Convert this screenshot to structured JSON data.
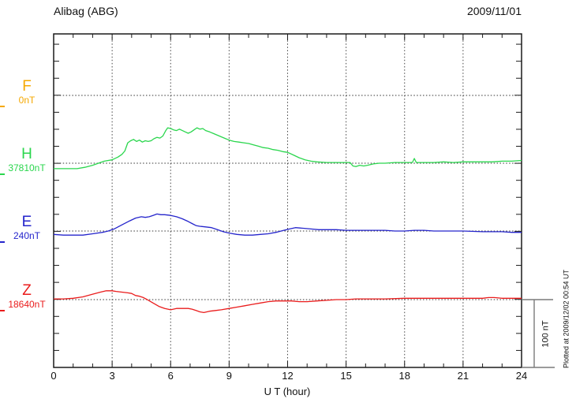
{
  "header": {
    "title": "Alibag (ABG)",
    "date": "2009/11/01"
  },
  "axis": {
    "x_label": "U T (hour)"
  },
  "scale_bar": {
    "label": "100 nT",
    "nT": 100
  },
  "footer_note": "Plotted at 2009/12/02 00:54 UT",
  "components": [
    {
      "label": "F",
      "value": "0nT",
      "color": "#f5a800"
    },
    {
      "label": "H",
      "value": "37810nT",
      "color": "#2ad64d"
    },
    {
      "label": "E",
      "value": "240nT",
      "color": "#2525cc"
    },
    {
      "label": "Z",
      "value": "18640nT",
      "color": "#ea1c1c"
    }
  ],
  "chart_data": {
    "type": "line",
    "title": "Alibag (ABG) magnetogram, 2009/11/01",
    "xlabel": "U T (hour)",
    "x_range": [
      0,
      24
    ],
    "x_ticks": [
      "0",
      "3",
      "6",
      "9",
      "12",
      "15",
      "18",
      "21",
      "24"
    ],
    "grid": "dotted vertical every 3 h, dotted horizontal baseline per component",
    "legend_position": "left margin (component letters with baseline values)",
    "y_scale_note": "offsets in nT relative to each component baseline; scale bar = 100 nT",
    "series": [
      {
        "name": "F",
        "baseline_value": "0nT",
        "color": "#f5a800",
        "points": []
      },
      {
        "name": "H",
        "baseline_value": "37810nT",
        "color": "#2ad64d",
        "points": [
          [
            0,
            -8
          ],
          [
            0.4,
            -8
          ],
          [
            0.8,
            -8
          ],
          [
            1.2,
            -8
          ],
          [
            1.6,
            -6
          ],
          [
            2.0,
            -3
          ],
          [
            2.3,
            0
          ],
          [
            2.6,
            3
          ],
          [
            3.0,
            5
          ],
          [
            3.3,
            9
          ],
          [
            3.5,
            13
          ],
          [
            3.65,
            18
          ],
          [
            3.8,
            30
          ],
          [
            3.95,
            33
          ],
          [
            4.1,
            35
          ],
          [
            4.25,
            32
          ],
          [
            4.4,
            34
          ],
          [
            4.55,
            31
          ],
          [
            4.7,
            33
          ],
          [
            4.85,
            32
          ],
          [
            5.0,
            33
          ],
          [
            5.15,
            36
          ],
          [
            5.3,
            38
          ],
          [
            5.45,
            37
          ],
          [
            5.6,
            40
          ],
          [
            5.75,
            48
          ],
          [
            5.85,
            52
          ],
          [
            6.0,
            51
          ],
          [
            6.15,
            49
          ],
          [
            6.3,
            48
          ],
          [
            6.45,
            50
          ],
          [
            6.6,
            48
          ],
          [
            6.75,
            46
          ],
          [
            6.9,
            44
          ],
          [
            7.05,
            46
          ],
          [
            7.2,
            49
          ],
          [
            7.35,
            52
          ],
          [
            7.5,
            50
          ],
          [
            7.65,
            51
          ],
          [
            7.8,
            48
          ],
          [
            8.0,
            46
          ],
          [
            8.25,
            43
          ],
          [
            8.5,
            40
          ],
          [
            8.75,
            37
          ],
          [
            9.0,
            34
          ],
          [
            9.25,
            32
          ],
          [
            9.5,
            31
          ],
          [
            9.75,
            30
          ],
          [
            10.0,
            29
          ],
          [
            10.25,
            27
          ],
          [
            10.5,
            25
          ],
          [
            10.75,
            23
          ],
          [
            11.0,
            22
          ],
          [
            11.25,
            20
          ],
          [
            11.5,
            19
          ],
          [
            11.75,
            17
          ],
          [
            12.0,
            16
          ],
          [
            12.3,
            12
          ],
          [
            12.6,
            8
          ],
          [
            12.9,
            5
          ],
          [
            13.2,
            3
          ],
          [
            13.5,
            2
          ],
          [
            14.0,
            1
          ],
          [
            14.5,
            1
          ],
          [
            15.0,
            1
          ],
          [
            15.2,
            1
          ],
          [
            15.35,
            -4
          ],
          [
            15.5,
            -5
          ],
          [
            15.7,
            -3
          ],
          [
            15.9,
            -4
          ],
          [
            16.1,
            -3
          ],
          [
            16.4,
            -1
          ],
          [
            16.7,
            0
          ],
          [
            17.0,
            0
          ],
          [
            17.5,
            1
          ],
          [
            18.0,
            1
          ],
          [
            18.4,
            1
          ],
          [
            18.5,
            7
          ],
          [
            18.6,
            1
          ],
          [
            19.0,
            1
          ],
          [
            19.5,
            1
          ],
          [
            20.0,
            2
          ],
          [
            20.5,
            1
          ],
          [
            21.0,
            2
          ],
          [
            21.5,
            2
          ],
          [
            22.0,
            2
          ],
          [
            22.5,
            2
          ],
          [
            23.0,
            3
          ],
          [
            23.5,
            3
          ],
          [
            24.0,
            4
          ]
        ]
      },
      {
        "name": "E",
        "baseline_value": "240nT",
        "color": "#2525cc",
        "points": [
          [
            0,
            -5
          ],
          [
            0.5,
            -6
          ],
          [
            1.0,
            -6
          ],
          [
            1.5,
            -6
          ],
          [
            2.0,
            -4
          ],
          [
            2.5,
            -2
          ],
          [
            2.8,
            0
          ],
          [
            3.1,
            3
          ],
          [
            3.5,
            9
          ],
          [
            3.9,
            15
          ],
          [
            4.2,
            19
          ],
          [
            4.5,
            21
          ],
          [
            4.7,
            20
          ],
          [
            4.9,
            21
          ],
          [
            5.1,
            23
          ],
          [
            5.3,
            25
          ],
          [
            5.5,
            24
          ],
          [
            5.7,
            24
          ],
          [
            6.0,
            23
          ],
          [
            6.3,
            21
          ],
          [
            6.6,
            18
          ],
          [
            6.9,
            14
          ],
          [
            7.1,
            11
          ],
          [
            7.3,
            8
          ],
          [
            7.5,
            7
          ],
          [
            7.8,
            6
          ],
          [
            8.1,
            5
          ],
          [
            8.4,
            2
          ],
          [
            8.7,
            -1
          ],
          [
            9.0,
            -3
          ],
          [
            9.4,
            -5
          ],
          [
            9.8,
            -6
          ],
          [
            10.2,
            -6
          ],
          [
            10.6,
            -5
          ],
          [
            11.0,
            -4
          ],
          [
            11.4,
            -2
          ],
          [
            11.8,
            1
          ],
          [
            12.1,
            3
          ],
          [
            12.4,
            5
          ],
          [
            12.8,
            4
          ],
          [
            13.2,
            3
          ],
          [
            13.6,
            2
          ],
          [
            14.0,
            2
          ],
          [
            14.5,
            2
          ],
          [
            15.0,
            1
          ],
          [
            15.5,
            1
          ],
          [
            16.0,
            1
          ],
          [
            16.5,
            1
          ],
          [
            17.0,
            1
          ],
          [
            17.5,
            0
          ],
          [
            18.0,
            0
          ],
          [
            18.5,
            1
          ],
          [
            19.0,
            1
          ],
          [
            19.5,
            0
          ],
          [
            20.0,
            0
          ],
          [
            21.0,
            0
          ],
          [
            22.0,
            -1
          ],
          [
            23.0,
            -1
          ],
          [
            23.5,
            -2
          ],
          [
            24.0,
            -2
          ]
        ]
      },
      {
        "name": "Z",
        "baseline_value": "18640nT",
        "color": "#ea1c1c",
        "points": [
          [
            0,
            1
          ],
          [
            0.5,
            1
          ],
          [
            1.0,
            2
          ],
          [
            1.5,
            4
          ],
          [
            2.0,
            8
          ],
          [
            2.4,
            11
          ],
          [
            2.7,
            13
          ],
          [
            3.0,
            13
          ],
          [
            3.2,
            12
          ],
          [
            3.5,
            11
          ],
          [
            3.8,
            10
          ],
          [
            4.0,
            9
          ],
          [
            4.2,
            6
          ],
          [
            4.4,
            5
          ],
          [
            4.6,
            3
          ],
          [
            4.8,
            0
          ],
          [
            5.1,
            -5
          ],
          [
            5.4,
            -10
          ],
          [
            5.7,
            -13
          ],
          [
            6.0,
            -15
          ],
          [
            6.3,
            -13
          ],
          [
            6.6,
            -13
          ],
          [
            6.9,
            -13
          ],
          [
            7.1,
            -14
          ],
          [
            7.3,
            -16
          ],
          [
            7.5,
            -18
          ],
          [
            7.7,
            -19
          ],
          [
            8.0,
            -17
          ],
          [
            8.3,
            -16
          ],
          [
            8.6,
            -15
          ],
          [
            9.0,
            -13
          ],
          [
            9.4,
            -11
          ],
          [
            9.8,
            -9
          ],
          [
            10.2,
            -7
          ],
          [
            10.6,
            -5
          ],
          [
            11.0,
            -3
          ],
          [
            11.4,
            -2
          ],
          [
            11.8,
            -2
          ],
          [
            12.2,
            -2
          ],
          [
            12.6,
            -3
          ],
          [
            13.0,
            -3
          ],
          [
            13.5,
            -2
          ],
          [
            14.0,
            -1
          ],
          [
            14.5,
            0
          ],
          [
            15.0,
            0
          ],
          [
            15.5,
            1
          ],
          [
            16.0,
            1
          ],
          [
            17.0,
            1
          ],
          [
            18.0,
            2
          ],
          [
            19.0,
            2
          ],
          [
            20.0,
            2
          ],
          [
            21.0,
            2
          ],
          [
            22.0,
            2
          ],
          [
            22.3,
            3
          ],
          [
            22.6,
            3
          ],
          [
            23.0,
            2
          ],
          [
            23.5,
            2
          ],
          [
            24.0,
            2
          ]
        ]
      }
    ],
    "scale_bar": {
      "label": "100 nT",
      "nT": 100
    },
    "annotations": [
      "Plotted at 2009/12/02 00:54 UT"
    ]
  },
  "colors": {
    "frame": "#1a1a1a",
    "grid": "#444444",
    "scalebar": "#7a7a7a",
    "F": "#f5a800",
    "H": "#2ad64d",
    "E": "#2525cc",
    "Z": "#ea1c1c"
  }
}
